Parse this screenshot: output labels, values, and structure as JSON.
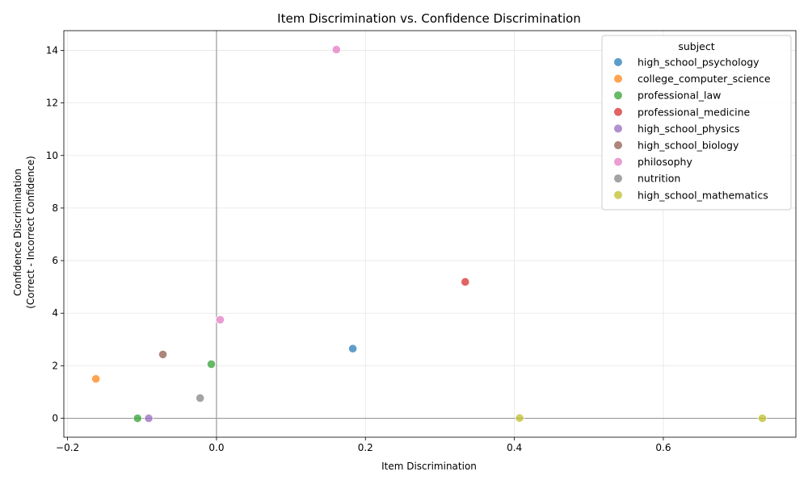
{
  "chart_data": {
    "type": "scatter",
    "title": "Item Discrimination vs. Confidence Discrimination",
    "xlabel": "Item Discrimination",
    "ylabel_line1": "Confidence Discrimination",
    "ylabel_line2": "(Correct - Incorrect Confidence)",
    "xlim": [
      -0.205,
      0.778
    ],
    "ylim": [
      -0.72,
      14.75
    ],
    "xticks": [
      -0.2,
      0.0,
      0.2,
      0.4,
      0.6
    ],
    "xtick_labels": [
      "−0.2",
      "0.0",
      "0.2",
      "0.4",
      "0.6"
    ],
    "yticks": [
      0,
      2,
      4,
      6,
      8,
      10,
      12,
      14
    ],
    "ytick_labels": [
      "0",
      "2",
      "4",
      "6",
      "8",
      "10",
      "12",
      "14"
    ],
    "grid": true,
    "reference_lines": {
      "x": 0,
      "y": 0
    },
    "legend": {
      "title": "subject",
      "placement": "top-right"
    },
    "series": [
      {
        "name": "high_school_psychology",
        "color": "#1f77b4",
        "points": [
          [
            0.183,
            2.65
          ]
        ]
      },
      {
        "name": "college_computer_science",
        "color": "#ff7f0e",
        "points": [
          [
            -0.162,
            1.5
          ]
        ]
      },
      {
        "name": "professional_law",
        "color": "#2ca02c",
        "points": [
          [
            -0.007,
            2.06
          ],
          [
            -0.106,
            0.0
          ]
        ]
      },
      {
        "name": "professional_medicine",
        "color": "#d62728",
        "points": [
          [
            0.334,
            5.19
          ]
        ]
      },
      {
        "name": "high_school_physics",
        "color": "#9467bd",
        "points": [
          [
            -0.091,
            0.0
          ]
        ]
      },
      {
        "name": "high_school_biology",
        "color": "#8c564b",
        "points": [
          [
            -0.072,
            2.43
          ]
        ]
      },
      {
        "name": "philosophy",
        "color": "#e377c2",
        "points": [
          [
            0.161,
            14.03
          ],
          [
            0.005,
            3.75
          ]
        ]
      },
      {
        "name": "nutrition",
        "color": "#7f7f7f",
        "points": [
          [
            -0.022,
            0.77
          ]
        ]
      },
      {
        "name": "high_school_mathematics",
        "color": "#bcbd22",
        "points": [
          [
            0.407,
            0.01
          ],
          [
            0.733,
            0.0
          ]
        ]
      }
    ]
  }
}
